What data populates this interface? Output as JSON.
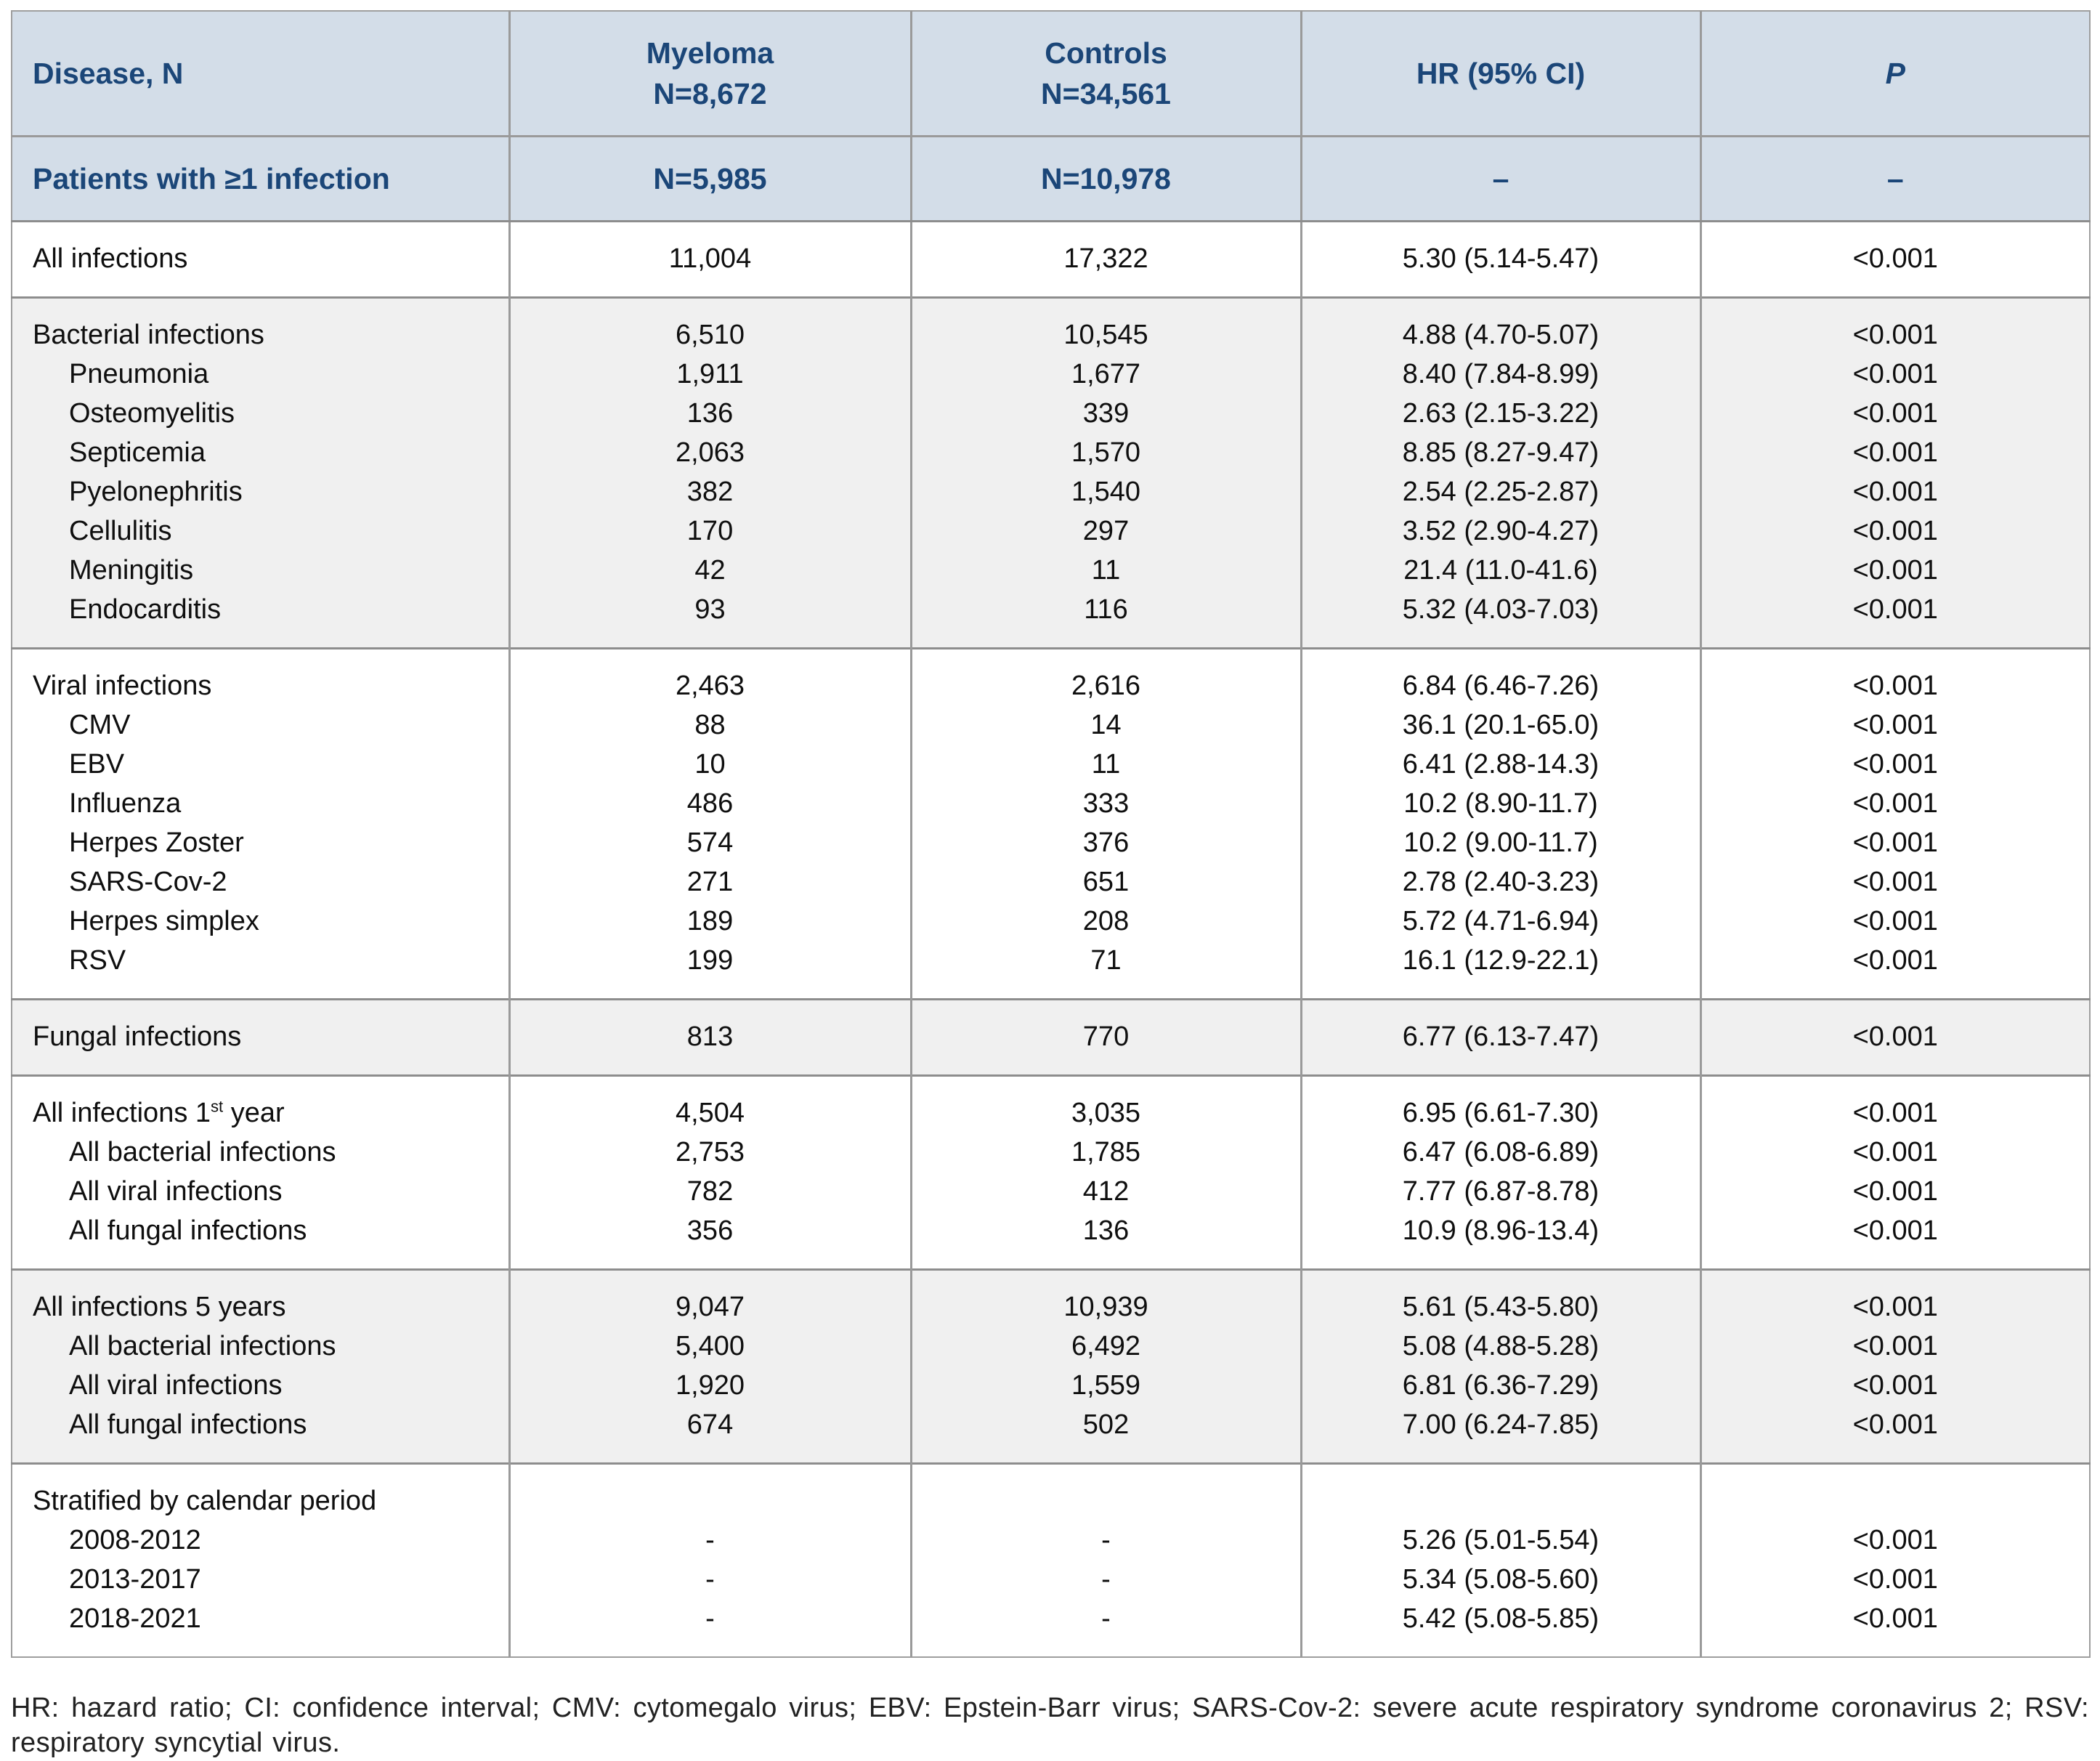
{
  "colors": {
    "header_bg": "#d3dde8",
    "header_fg": "#1b4678",
    "alt_row_bg": "#f0f0f0",
    "border_vertical": "#9a9a9a",
    "border_horizontal": "#8d8d8d"
  },
  "table": {
    "header": {
      "disease": "Disease, N",
      "myeloma_line1": "Myeloma",
      "myeloma_line2": "N=8,672",
      "controls_line1": "Controls",
      "controls_line2": "N=34,561",
      "hr": "HR (95% CI)",
      "p": "P"
    },
    "subheader": {
      "disease": "Patients with ≥1 infection",
      "myeloma": "N=5,985",
      "controls": "N=10,978",
      "hr": "–",
      "p": "–"
    },
    "groups": [
      {
        "shade": "white",
        "rows": [
          {
            "label": "All infections",
            "myeloma": "11,004",
            "controls": "17,322",
            "hr": "5.30 (5.14-5.47)",
            "p": "<0.001"
          }
        ]
      },
      {
        "shade": "gray",
        "rows": [
          {
            "label": "Bacterial infections",
            "myeloma": "6,510",
            "controls": "10,545",
            "hr": "4.88 (4.70-5.07)",
            "p": "<0.001"
          },
          {
            "label": "Pneumonia",
            "indent": true,
            "myeloma": "1,911",
            "controls": "1,677",
            "hr": "8.40 (7.84-8.99)",
            "p": "<0.001"
          },
          {
            "label": "Osteomyelitis",
            "indent": true,
            "myeloma": "136",
            "controls": "339",
            "hr": "2.63 (2.15-3.22)",
            "p": "<0.001"
          },
          {
            "label": "Septicemia",
            "indent": true,
            "myeloma": "2,063",
            "controls": "1,570",
            "hr": "8.85 (8.27-9.47)",
            "p": "<0.001"
          },
          {
            "label": "Pyelonephritis",
            "indent": true,
            "myeloma": "382",
            "controls": "1,540",
            "hr": "2.54 (2.25-2.87)",
            "p": "<0.001"
          },
          {
            "label": "Cellulitis",
            "indent": true,
            "myeloma": "170",
            "controls": "297",
            "hr": "3.52 (2.90-4.27)",
            "p": "<0.001"
          },
          {
            "label": "Meningitis",
            "indent": true,
            "myeloma": "42",
            "controls": "11",
            "hr": "21.4 (11.0-41.6)",
            "p": "<0.001"
          },
          {
            "label": "Endocarditis",
            "indent": true,
            "myeloma": "93",
            "controls": "116",
            "hr": "5.32 (4.03-7.03)",
            "p": "<0.001"
          }
        ]
      },
      {
        "shade": "white",
        "rows": [
          {
            "label": "Viral infections",
            "myeloma": "2,463",
            "controls": "2,616",
            "hr": "6.84 (6.46-7.26)",
            "p": "<0.001"
          },
          {
            "label": "CMV",
            "indent": true,
            "myeloma": "88",
            "controls": "14",
            "hr": "36.1 (20.1-65.0)",
            "p": "<0.001"
          },
          {
            "label": "EBV",
            "indent": true,
            "myeloma": "10",
            "controls": "11",
            "hr": "6.41 (2.88-14.3)",
            "p": "<0.001"
          },
          {
            "label": "Influenza",
            "indent": true,
            "myeloma": "486",
            "controls": "333",
            "hr": "10.2 (8.90-11.7)",
            "p": "<0.001"
          },
          {
            "label": "Herpes Zoster",
            "indent": true,
            "myeloma": "574",
            "controls": "376",
            "hr": "10.2 (9.00-11.7)",
            "p": "<0.001"
          },
          {
            "label": "SARS-Cov-2",
            "indent": true,
            "myeloma": "271",
            "controls": "651",
            "hr": "2.78 (2.40-3.23)",
            "p": "<0.001"
          },
          {
            "label": "Herpes simplex",
            "indent": true,
            "myeloma": "189",
            "controls": "208",
            "hr": "5.72 (4.71-6.94)",
            "p": "<0.001"
          },
          {
            "label": "RSV",
            "indent": true,
            "myeloma": "199",
            "controls": "71",
            "hr": "16.1 (12.9-22.1)",
            "p": "<0.001"
          }
        ]
      },
      {
        "shade": "gray",
        "rows": [
          {
            "label": "Fungal infections",
            "myeloma": "813",
            "controls": "770",
            "hr": "6.77 (6.13-7.47)",
            "p": "<0.001"
          }
        ]
      },
      {
        "shade": "white",
        "rows": [
          {
            "sup": {
              "before": "All infections 1",
              "text": "st",
              "after": " year"
            },
            "label": "All infections 1st year",
            "myeloma": "4,504",
            "controls": "3,035",
            "hr": "6.95 (6.61-7.30)",
            "p": "<0.001"
          },
          {
            "label": "All bacterial infections",
            "indent": true,
            "myeloma": "2,753",
            "controls": "1,785",
            "hr": "6.47 (6.08-6.89)",
            "p": "<0.001"
          },
          {
            "label": "All viral infections",
            "indent": true,
            "myeloma": "782",
            "controls": "412",
            "hr": "7.77 (6.87-8.78)",
            "p": "<0.001"
          },
          {
            "label": "All fungal infections",
            "indent": true,
            "myeloma": "356",
            "controls": "136",
            "hr": "10.9 (8.96-13.4)",
            "p": "<0.001"
          }
        ]
      },
      {
        "shade": "gray",
        "rows": [
          {
            "label": "All infections 5 years",
            "myeloma": "9,047",
            "controls": "10,939",
            "hr": "5.61 (5.43-5.80)",
            "p": "<0.001"
          },
          {
            "label": "All bacterial infections",
            "indent": true,
            "myeloma": "5,400",
            "controls": "6,492",
            "hr": "5.08 (4.88-5.28)",
            "p": "<0.001"
          },
          {
            "label": "All viral infections",
            "indent": true,
            "myeloma": "1,920",
            "controls": "1,559",
            "hr": "6.81 (6.36-7.29)",
            "p": "<0.001"
          },
          {
            "label": "All fungal infections",
            "indent": true,
            "myeloma": "674",
            "controls": "502",
            "hr": "7.00 (6.24-7.85)",
            "p": "<0.001"
          }
        ]
      },
      {
        "shade": "white",
        "rows": [
          {
            "label": "Stratified by calendar period",
            "myeloma": "",
            "controls": "",
            "hr": "",
            "p": ""
          },
          {
            "label": "2008-2012",
            "indent": true,
            "myeloma": "-",
            "controls": "-",
            "hr": "5.26 (5.01-5.54)",
            "p": "<0.001"
          },
          {
            "label": "2013-2017",
            "indent": true,
            "myeloma": "-",
            "controls": "-",
            "hr": "5.34 (5.08-5.60)",
            "p": "<0.001"
          },
          {
            "label": "2018-2021",
            "indent": true,
            "myeloma": "-",
            "controls": "-",
            "hr": "5.42 (5.08-5.85)",
            "p": "<0.001"
          }
        ]
      }
    ]
  },
  "footnote": "HR: hazard ratio; CI: confidence interval; CMV: cytomegalo virus; EBV: Epstein-Barr virus; SARS-Cov-2: severe acute respiratory syndrome coronavirus 2; RSV: respiratory syncytial virus."
}
